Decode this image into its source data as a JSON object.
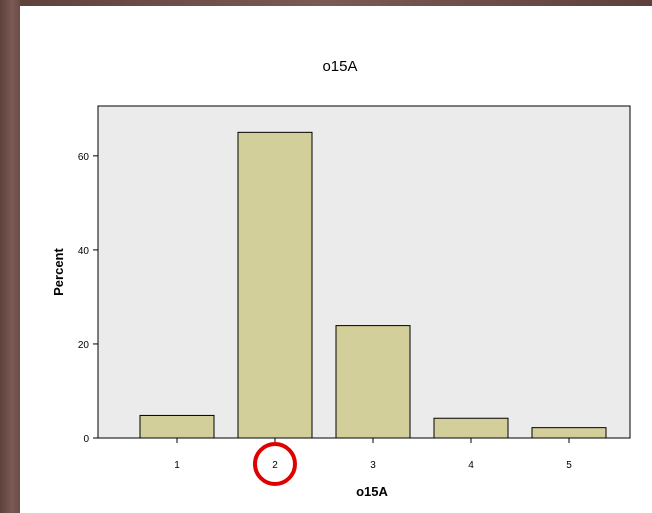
{
  "chart_data": {
    "type": "bar",
    "title": "o15A",
    "xlabel": "o15A",
    "ylabel": "Percent",
    "categories": [
      "1",
      "2",
      "3",
      "4",
      "5"
    ],
    "values": [
      4.8,
      65.0,
      23.9,
      4.2,
      2.2
    ],
    "yticks": [
      0,
      20,
      40,
      60
    ],
    "ylim": [
      0,
      70.6
    ],
    "grid": false,
    "bar_color": "#d3cf9a",
    "plot_background": "#ebebeb",
    "highlighted_category": "2",
    "highlight_color": "#e00000"
  }
}
